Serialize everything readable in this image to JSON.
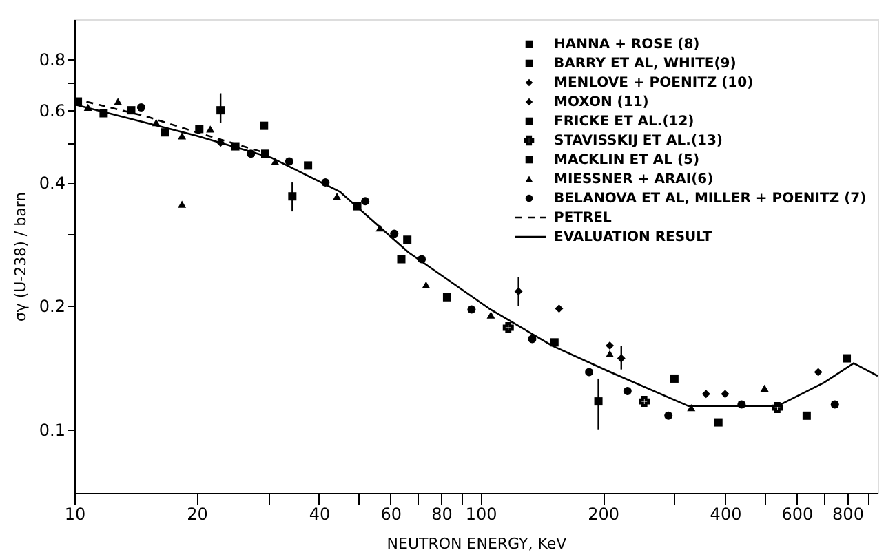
{
  "chart_data": {
    "type": "scatter",
    "xlabel": "NEUTRON ENERGY, KeV",
    "ylabel": "σγ (U-238) / barn",
    "log": "xy",
    "xlim": [
      10,
      950
    ],
    "ylim": [
      0.07,
      1.0
    ],
    "xticks": [
      10,
      20,
      {
        "value": 30,
        "label": null
      },
      40,
      {
        "value": 50,
        "label": null
      },
      60,
      {
        "value": 70,
        "label": null
      },
      80,
      {
        "value": 90,
        "label": null
      },
      100,
      200,
      {
        "value": 300,
        "label": null
      },
      400,
      {
        "value": 500,
        "label": null
      },
      600,
      {
        "value": 700,
        "label": null
      },
      800,
      {
        "value": 900,
        "label": null
      }
    ],
    "yticks": [
      {
        "value": 0.1,
        "label": "0.1"
      },
      {
        "value": 0.2,
        "label": "0.2"
      },
      {
        "value": 0.3,
        "label": null
      },
      {
        "value": 0.4,
        "label": "0.4"
      },
      {
        "value": 0.5,
        "label": null
      },
      {
        "value": 0.6,
        "label": "0.6"
      },
      {
        "value": 0.7,
        "label": null
      },
      {
        "value": 0.8,
        "label": "0.8"
      }
    ],
    "grid": false,
    "legend": "top right",
    "series": [
      {
        "name": "HANNA + ROSE (8)",
        "color": "#000000",
        "marker": "square",
        "x": [
          22.9,
          29.3
        ],
        "values": [
          0.6,
          0.55
        ],
        "errors": [
          [
            0.56,
            0.66
          ],
          null
        ]
      },
      {
        "name": "BARRY ET AL, WHITE(9)",
        "color": "#000000",
        "marker": "square",
        "x": [
          34.4,
          63.8,
          195,
          300,
          635
        ],
        "values": [
          0.37,
          0.26,
          0.117,
          0.133,
          0.108
        ],
        "errors": [
          [
            0.34,
            0.4
          ],
          null,
          [
            0.1,
            0.133
          ],
          null,
          null
        ]
      },
      {
        "name": "MENLOVE + POENITZ (10)",
        "color": "#000000",
        "marker": "diamond",
        "x": [
          124,
          156,
          208,
          400
        ],
        "values": [
          0.217,
          0.197,
          0.16,
          0.122
        ],
        "errors": [
          [
            0.2,
            0.235
          ],
          null,
          null,
          null
        ]
      },
      {
        "name": "MOXON (11)",
        "color": "#000000",
        "marker": "diamond",
        "x": [
          22.9,
          222,
          359,
          678
        ],
        "values": [
          0.5,
          0.149,
          0.122,
          0.138
        ],
        "errors": [
          null,
          [
            0.14,
            0.16
          ],
          null,
          null
        ]
      },
      {
        "name": "FRICKE ET AL.(12)",
        "color": "#000000",
        "marker": "square",
        "x": [
          797
        ],
        "values": [
          0.149
        ]
      },
      {
        "name": "STAVISSKIJ ET AL.(13)",
        "color": "#000000",
        "marker": "cross",
        "x": [
          117,
          253,
          538
        ],
        "values": [
          0.177,
          0.117,
          0.113
        ]
      },
      {
        "name": "MACKLIN ET AL (5)",
        "color": "#000000",
        "marker": "square",
        "x": [
          10.2,
          11.8,
          13.8,
          16.7,
          20.3,
          24.9,
          29.5,
          37.6,
          49.7,
          66,
          82.7,
          152,
          385
        ],
        "values": [
          0.63,
          0.59,
          0.6,
          0.53,
          0.54,
          0.49,
          0.47,
          0.44,
          0.35,
          0.29,
          0.21,
          0.163,
          0.104
        ]
      },
      {
        "name": "MIESSNER + ARAI(6)",
        "color": "#000000",
        "marker": "triangle",
        "x": [
          10.8,
          12.8,
          15.9,
          18.4,
          18.4,
          21.6,
          31.2,
          44.3,
          56.5,
          73.4,
          106,
          208,
          330,
          500
        ],
        "values": [
          0.61,
          0.63,
          0.56,
          0.52,
          0.354,
          0.54,
          0.45,
          0.37,
          0.31,
          0.225,
          0.19,
          0.153,
          0.113,
          0.126
        ]
      },
      {
        "name": "BELANOVA ET AL, MILLER + POENITZ (7)",
        "color": "#000000",
        "marker": "circle",
        "x": [
          14.6,
          27.2,
          33.8,
          41.5,
          52,
          61.3,
          71.6,
          95,
          134,
          185,
          230,
          290,
          439,
          745
        ],
        "values": [
          0.61,
          0.47,
          0.45,
          0.4,
          0.36,
          0.3,
          0.26,
          0.196,
          0.166,
          0.138,
          0.124,
          0.108,
          0.115,
          0.115
        ]
      },
      {
        "name": "PETREL",
        "type": "line",
        "color": "#000000",
        "line_style": "dashed",
        "marker": "none",
        "x": [
          10,
          15,
          20,
          30
        ],
        "values": [
          0.64,
          0.58,
          0.53,
          0.47
        ]
      },
      {
        "name": "EVALUATION RESULT",
        "type": "line",
        "color": "#000000",
        "line_style": "solid",
        "marker": "none",
        "x": [
          10,
          20,
          30.5,
          45,
          66.5,
          105,
          150,
          205,
          325,
          538,
          700,
          829,
          950
        ],
        "values": [
          0.62,
          0.52,
          0.46,
          0.38,
          0.27,
          0.197,
          0.16,
          0.139,
          0.114,
          0.114,
          0.13,
          0.145,
          0.135
        ]
      }
    ]
  }
}
